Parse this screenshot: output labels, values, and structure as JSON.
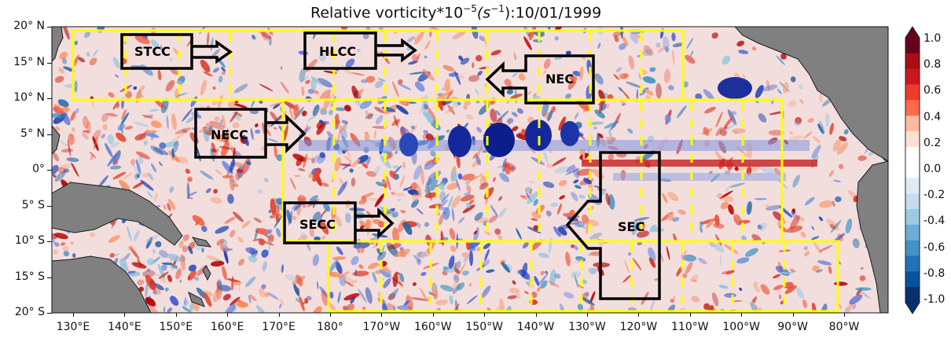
{
  "title": {
    "prefix": "Relative vorticity*10",
    "exponent": "−5",
    "units_open": "(s",
    "units_exponent": "−1",
    "suffix": "):10/01/1999"
  },
  "y_ticks": [
    "20° N",
    "15° N",
    "10° N",
    "5° N",
    "0°",
    "5° S",
    "10° S",
    "15° S",
    "20° S"
  ],
  "x_ticks": [
    "130°E",
    "140°E",
    "150°E",
    "160°E",
    "170°E",
    "180°",
    "170°W",
    "160°W",
    "150°W",
    "140°W",
    "130°W",
    "120°W",
    "110°W",
    "100°W",
    "90°W",
    "80°W"
  ],
  "colorbar": {
    "labels": [
      "1.0",
      "0.8",
      "0.6",
      "0.4",
      "0.2",
      "0.0",
      "-0.2",
      "-0.4",
      "-0.6",
      "-0.8",
      "-1.0"
    ],
    "colors": [
      "#67001f",
      "#a50f15",
      "#cb181d",
      "#ef3b2c",
      "#fb6a4a",
      "#fcbba1",
      "#fee0d2",
      "#ffffff",
      "#ffffff",
      "#deebf7",
      "#c6dbef",
      "#9ecae1",
      "#6baed6",
      "#4292c6",
      "#2171b5",
      "#08519c",
      "#08306b"
    ]
  },
  "current_labels": {
    "stcc": "STCC",
    "hlcc": "HLCC",
    "nec": "NEC",
    "necc": "NECC",
    "secc": "SECC",
    "sec": "SEC"
  },
  "colors": {
    "land": "#7f7f7f",
    "boxes": "#ffff00",
    "arrows": "#000000",
    "background": "#f4dada"
  }
}
